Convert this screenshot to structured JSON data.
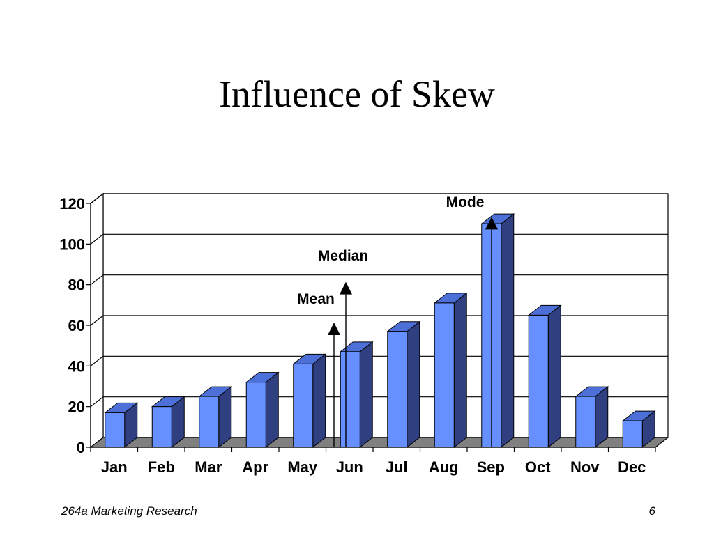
{
  "slide": {
    "title": "Influence of Skew",
    "footer_left": "264a Marketing Research",
    "page_number": "6"
  },
  "chart_data": {
    "type": "bar",
    "style": "3d-column",
    "categories": [
      "Jan",
      "Feb",
      "Mar",
      "Apr",
      "May",
      "Jun",
      "Jul",
      "Aug",
      "Sep",
      "Oct",
      "Nov",
      "Dec"
    ],
    "values": [
      17,
      20,
      25,
      32,
      41,
      47,
      57,
      71,
      110,
      65,
      25,
      13
    ],
    "ylim": [
      0,
      120
    ],
    "yticks": [
      0,
      20,
      40,
      60,
      80,
      100,
      120
    ],
    "grid": true,
    "legend": "none",
    "annotations": [
      {
        "label": "Mean",
        "category": "Jun",
        "value": 60
      },
      {
        "label": "Median",
        "category": "Jun",
        "value": 80
      },
      {
        "label": "Mode",
        "category": "Sep",
        "value": 112
      }
    ],
    "colors": {
      "bar_front": "#6690FF",
      "bar_top": "#4D6FD8",
      "bar_side": "#2F3F80",
      "floor": "#808080"
    }
  }
}
